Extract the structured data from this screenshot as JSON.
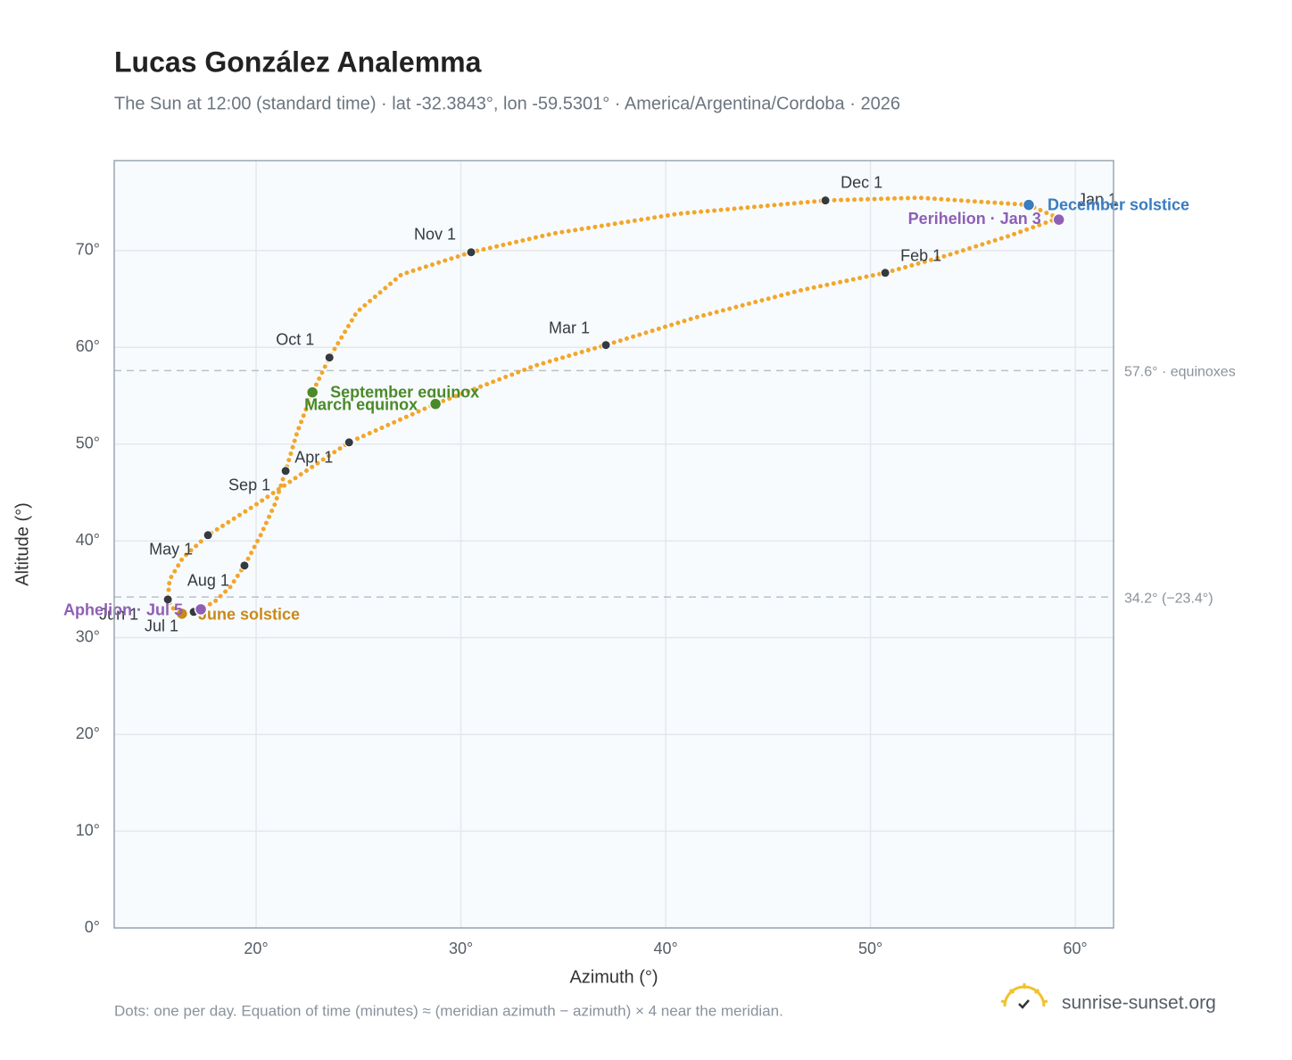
{
  "chart_data": {
    "type": "analemma",
    "title": "Lucas González Analemma",
    "subtitle": "The Sun at 12:00 (standard time) · lat -32.3843°, lon -59.5301° · America/Argentina/Cordoba · 2026",
    "x_label": "Azimuth (°)",
    "y_label": "Altitude (°)",
    "xlim": [
      13.07,
      61.87
    ],
    "ylim": [
      0,
      79.3
    ],
    "xticks": [
      {
        "value": 20,
        "label": "20°"
      },
      {
        "value": 30,
        "label": "30°"
      },
      {
        "value": 40,
        "label": "40°"
      },
      {
        "value": 50,
        "label": "50°"
      },
      {
        "value": 60,
        "label": "60°"
      }
    ],
    "yticks": [
      {
        "value": 0,
        "label": "0°"
      },
      {
        "value": 10,
        "label": "10°"
      },
      {
        "value": 20,
        "label": "20°"
      },
      {
        "value": 30,
        "label": "30°"
      },
      {
        "value": 40,
        "label": "40°"
      },
      {
        "value": 50,
        "label": "50°"
      },
      {
        "value": 60,
        "label": "60°"
      },
      {
        "value": 70,
        "label": "70°"
      }
    ],
    "grid": true,
    "path": {
      "color": "#f2a62a",
      "x": [
        59.17,
        56.73,
        53.68,
        50.72,
        46.71,
        41.48,
        37.08,
        33.64,
        28.76,
        24.54,
        22.31,
        19.91,
        17.65,
        16.43,
        15.77,
        15.69,
        15.95,
        16.38,
        16.95,
        17.95,
        18.74,
        19.43,
        20.22,
        20.92,
        21.44,
        22.0,
        22.75,
        23.58,
        24.92,
        27.1,
        30.5,
        34.51,
        40.61,
        47.8,
        52.37,
        57.73,
        59.09
      ],
      "y": [
        73.34,
        71.49,
        69.46,
        67.7,
        65.96,
        63.1,
        60.24,
        58.12,
        54.15,
        50.18,
        47.05,
        43.63,
        40.59,
        38.28,
        35.98,
        33.95,
        33.03,
        32.47,
        32.66,
        33.67,
        35.24,
        37.45,
        40.59,
        43.82,
        47.23,
        51.2,
        55.35,
        58.95,
        63.65,
        67.53,
        69.83,
        71.77,
        73.8,
        75.18,
        75.46,
        74.72,
        73.43
      ]
    },
    "months": [
      {
        "label": "Jan 1",
        "x": 59.17,
        "y": 73.34
      },
      {
        "label": "Feb 1",
        "x": 50.72,
        "y": 67.7
      },
      {
        "label": "Mar 1",
        "x": 37.08,
        "y": 60.24
      },
      {
        "label": "Apr 1",
        "x": 24.54,
        "y": 50.18
      },
      {
        "label": "May 1",
        "x": 17.65,
        "y": 40.59
      },
      {
        "label": "Jun 1",
        "x": 15.69,
        "y": 33.95
      },
      {
        "label": "Jul 1",
        "x": 16.95,
        "y": 32.66
      },
      {
        "label": "Aug 1",
        "x": 19.43,
        "y": 37.45
      },
      {
        "label": "Sep 1",
        "x": 21.44,
        "y": 47.23
      },
      {
        "label": "Oct 1",
        "x": 23.58,
        "y": 58.95
      },
      {
        "label": "Nov 1",
        "x": 30.5,
        "y": 69.83
      },
      {
        "label": "Dec 1",
        "x": 47.8,
        "y": 75.18
      }
    ],
    "events": [
      {
        "label": "December solstice",
        "x": 57.73,
        "y": 74.72,
        "color": "#3a7cc0"
      },
      {
        "label": "Perihelion · Jan 3",
        "x": 59.2,
        "y": 73.2,
        "color": "#8e5fb5"
      },
      {
        "label": "September equinox",
        "x": 22.75,
        "y": 55.35,
        "color": "#4a8a2a"
      },
      {
        "label": "March equinox",
        "x": 28.76,
        "y": 54.15,
        "color": "#4a8a2a"
      },
      {
        "label": "June solstice",
        "x": 16.38,
        "y": 32.47,
        "color": "#c98a1a"
      },
      {
        "label": "Aphelion · Jul 5",
        "x": 17.3,
        "y": 32.93,
        "color": "#8e5fb5"
      }
    ],
    "ref_lines": [
      {
        "value": 57.6,
        "label": "57.6° · equinoxes"
      },
      {
        "value": 34.2,
        "label": "34.2° (−23.4°)"
      }
    ],
    "footnote": "Dots: one per day. Equation of time (minutes) ≈ (meridian azimuth − azimuth) × 4 near the meridian.",
    "brand": "sunrise-sunset.org"
  }
}
